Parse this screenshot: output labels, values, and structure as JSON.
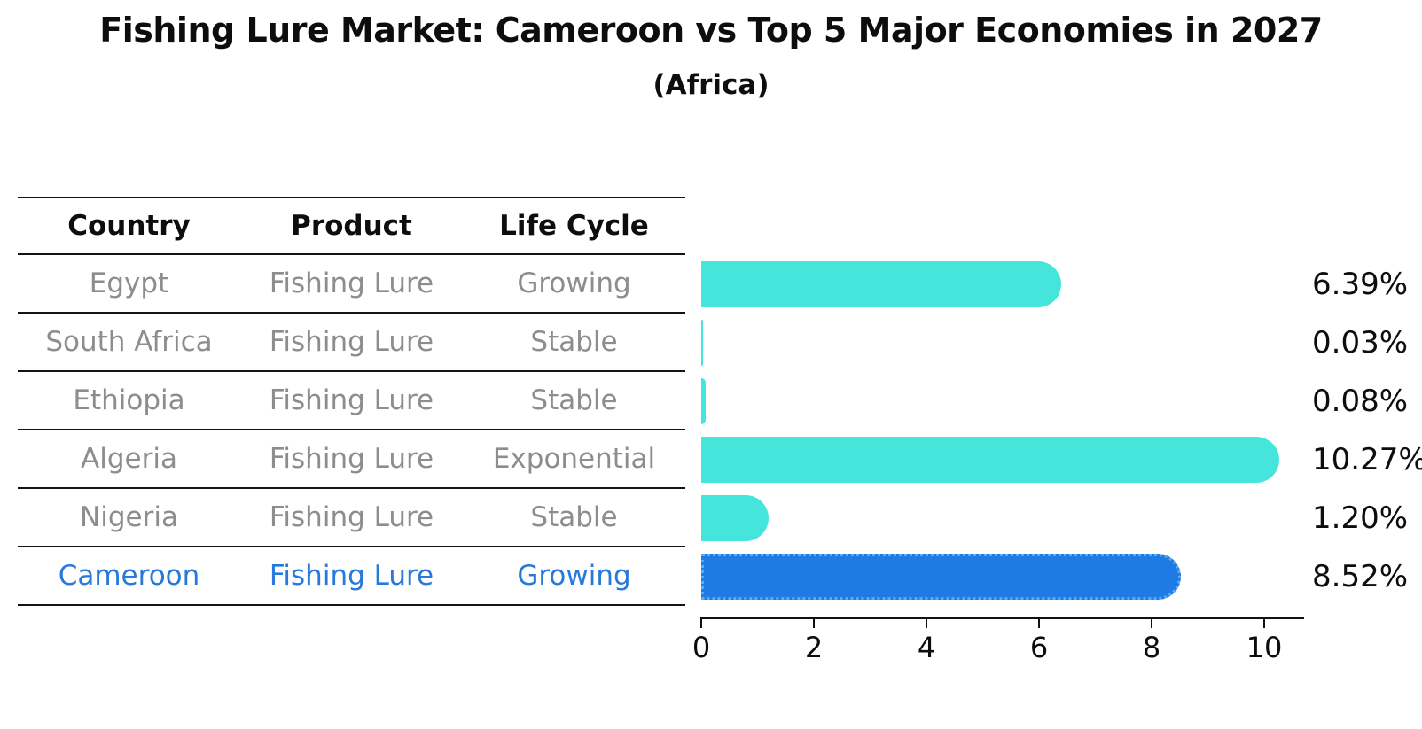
{
  "title": "Fishing Lure Market: Cameroon vs Top 5 Major Economies in 2027",
  "subtitle": "(Africa)",
  "table": {
    "headers": [
      "Country",
      "Product",
      "Life Cycle"
    ],
    "rows": [
      {
        "country": "Egypt",
        "product": "Fishing Lure",
        "life_cycle": "Growing"
      },
      {
        "country": "South Africa",
        "product": "Fishing Lure",
        "life_cycle": "Stable"
      },
      {
        "country": "Ethiopia",
        "product": "Fishing Lure",
        "life_cycle": "Stable"
      },
      {
        "country": "Algeria",
        "product": "Fishing Lure",
        "life_cycle": "Exponential"
      },
      {
        "country": "Nigeria",
        "product": "Fishing Lure",
        "life_cycle": "Stable"
      },
      {
        "country": "Cameroon",
        "product": "Fishing Lure",
        "life_cycle": "Growing"
      }
    ],
    "highlight_row_index": 5
  },
  "chart_data": {
    "type": "bar",
    "orientation": "horizontal",
    "title": "Fishing Lure Market: Cameroon vs Top 5 Major Economies in 2027",
    "subtitle": "(Africa)",
    "categories": [
      "Egypt",
      "South Africa",
      "Ethiopia",
      "Algeria",
      "Nigeria",
      "Cameroon"
    ],
    "values": [
      6.39,
      0.03,
      0.08,
      10.27,
      1.2,
      8.52
    ],
    "value_labels": [
      "6.39%",
      "0.03%",
      "0.08%",
      "10.27%",
      "1.20%",
      "8.52%"
    ],
    "xticks": [
      0,
      2,
      4,
      6,
      8,
      10
    ],
    "xlim": [
      0,
      10.7
    ],
    "grid": false,
    "legend": false,
    "bar_color": "#45e5dc",
    "highlight_index": 5,
    "highlight_color": "#1e7be6",
    "highlight_border_color": "#5fa9f0"
  },
  "colors": {
    "background": "#ffffff",
    "text_primary": "#0d0d0d",
    "table_text": "#8d8d8d",
    "highlight_text": "#2979db",
    "axis": "#111111"
  }
}
